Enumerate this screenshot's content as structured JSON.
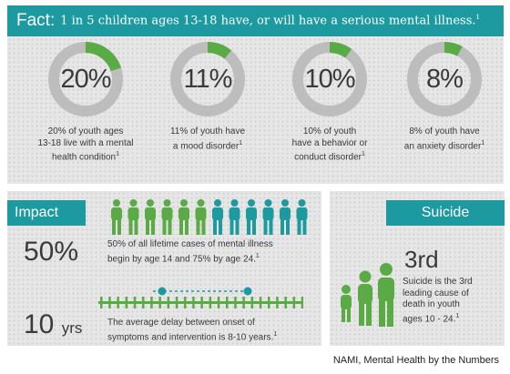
{
  "fact": {
    "label": "Fact:",
    "text": "1 in 5 children ages 13-18 have, or will have a serious mental illness.",
    "ref": "1"
  },
  "stats": [
    {
      "percent": "20%",
      "fraction": 0.2,
      "desc_lines": [
        "20% of youth ages",
        "13-18 live with a mental",
        "health condition"
      ],
      "ref": "1"
    },
    {
      "percent": "11%",
      "fraction": 0.11,
      "desc_lines": [
        "11% of youth have",
        "a mood disorder"
      ],
      "ref": "1"
    },
    {
      "percent": "10%",
      "fraction": 0.1,
      "desc_lines": [
        "10% of youth",
        "have a behavior or",
        "conduct disorder"
      ],
      "ref": "1"
    },
    {
      "percent": "8%",
      "fraction": 0.08,
      "desc_lines": [
        "8% of youth have",
        "an anxiety disorder"
      ],
      "ref": "1"
    }
  ],
  "impact": {
    "label": "Impact",
    "people_total": 12,
    "people_highlighted": 6,
    "stat1_value": "50%",
    "stat1_text_line1": "50% of all lifetime cases of mental illness",
    "stat1_text_line2": "begin by age 14 and 75% by age 24.",
    "stat1_ref": "1",
    "stat2_value": "10",
    "stat2_unit": "yrs",
    "stat2_text_line1": "The average delay between onset of",
    "stat2_text_line2": "symptoms and intervention is 8-10 years.",
    "stat2_ref": "1"
  },
  "suicide": {
    "label": "Suicide",
    "rank": "3rd",
    "desc_lines": [
      "Suicide is the 3rd",
      "leading cause of",
      "death in youth",
      "ages  10 - 24."
    ],
    "ref": "1"
  },
  "source": "NAMI, Mental Health by the Numbers",
  "colors": {
    "teal": "#1c9aa0",
    "green": "#5aab46",
    "ring_gray": "#bdbdbd",
    "panel_bg": "#e6e6e6"
  }
}
